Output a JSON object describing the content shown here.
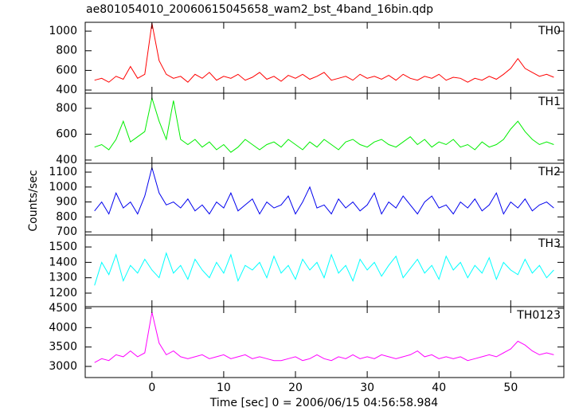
{
  "chart_data": {
    "type": "line",
    "title": "ae801054010_20060615045658_wam2_bst_4band_16bin.qdp",
    "xlabel": "Time [sec] 0 = 2006/06/15 04:56:58.984",
    "ylabel": "Counts/sec",
    "xlim": [
      -9.3,
      57.4
    ],
    "xticks": [
      0,
      10,
      20,
      30,
      40,
      50
    ],
    "x": [
      -8,
      -7,
      -6,
      -5,
      -4,
      -3,
      -2,
      -1,
      0,
      1,
      2,
      3,
      4,
      5,
      6,
      7,
      8,
      9,
      10,
      11,
      12,
      13,
      14,
      15,
      16,
      17,
      18,
      19,
      20,
      21,
      22,
      23,
      24,
      25,
      26,
      27,
      28,
      29,
      30,
      31,
      32,
      33,
      34,
      35,
      36,
      37,
      38,
      39,
      40,
      41,
      42,
      43,
      44,
      45,
      46,
      47,
      48,
      49,
      50,
      51,
      52,
      53,
      54,
      55,
      56
    ],
    "series": [
      {
        "name": "TH0",
        "color": "#ff0000",
        "ylim": [
          368,
          1090
        ],
        "yticks": [
          400,
          600,
          800,
          1000
        ],
        "values": [
          500,
          520,
          480,
          540,
          510,
          640,
          520,
          560,
          1080,
          700,
          560,
          520,
          540,
          480,
          560,
          520,
          580,
          500,
          540,
          520,
          560,
          500,
          530,
          580,
          510,
          540,
          490,
          550,
          520,
          560,
          510,
          540,
          580,
          500,
          520,
          540,
          500,
          560,
          520,
          540,
          510,
          550,
          500,
          560,
          520,
          500,
          540,
          520,
          560,
          500,
          530,
          520,
          480,
          520,
          500,
          540,
          510,
          560,
          620,
          720,
          620,
          580,
          540,
          560,
          530
        ]
      },
      {
        "name": "TH1",
        "color": "#00ee00",
        "ylim": [
          375,
          917
        ],
        "yticks": [
          400,
          600,
          800
        ],
        "values": [
          500,
          520,
          480,
          560,
          700,
          540,
          580,
          620,
          880,
          700,
          560,
          860,
          560,
          520,
          560,
          500,
          540,
          480,
          520,
          460,
          500,
          560,
          520,
          480,
          520,
          540,
          500,
          560,
          520,
          480,
          540,
          500,
          560,
          520,
          480,
          540,
          560,
          520,
          500,
          540,
          560,
          520,
          500,
          540,
          580,
          520,
          560,
          500,
          540,
          520,
          560,
          500,
          520,
          480,
          540,
          500,
          520,
          560,
          640,
          700,
          620,
          560,
          520,
          540,
          520
        ]
      },
      {
        "name": "TH2",
        "color": "#0000ee",
        "ylim": [
          679,
          1159
        ],
        "yticks": [
          700,
          800,
          900,
          1000,
          1100
        ],
        "values": [
          840,
          900,
          820,
          960,
          860,
          900,
          820,
          940,
          1130,
          960,
          880,
          900,
          860,
          920,
          840,
          880,
          820,
          900,
          860,
          960,
          840,
          880,
          920,
          820,
          900,
          860,
          880,
          940,
          820,
          900,
          1000,
          860,
          880,
          820,
          920,
          860,
          900,
          840,
          880,
          960,
          820,
          900,
          860,
          940,
          880,
          820,
          900,
          940,
          860,
          880,
          820,
          900,
          860,
          920,
          840,
          880,
          960,
          820,
          900,
          860,
          920,
          840,
          880,
          900,
          860
        ]
      },
      {
        "name": "TH3",
        "color": "#00ffff",
        "ylim": [
          1112,
          1578
        ],
        "yticks": [
          1200,
          1300,
          1400,
          1500
        ],
        "values": [
          1250,
          1400,
          1320,
          1450,
          1280,
          1380,
          1330,
          1420,
          1350,
          1300,
          1460,
          1330,
          1380,
          1290,
          1420,
          1350,
          1300,
          1400,
          1330,
          1450,
          1280,
          1380,
          1350,
          1400,
          1300,
          1440,
          1330,
          1380,
          1290,
          1420,
          1350,
          1400,
          1300,
          1450,
          1330,
          1380,
          1280,
          1420,
          1350,
          1400,
          1310,
          1380,
          1440,
          1300,
          1360,
          1420,
          1330,
          1380,
          1290,
          1440,
          1350,
          1400,
          1300,
          1380,
          1330,
          1430,
          1290,
          1400,
          1350,
          1320,
          1420,
          1330,
          1380,
          1300,
          1350
        ]
      },
      {
        "name": "TH0123",
        "color": "#ff00ff",
        "ylim": [
          2713,
          4541
        ],
        "yticks": [
          3000,
          3500,
          4000,
          4500
        ],
        "values": [
          3100,
          3200,
          3150,
          3300,
          3250,
          3400,
          3250,
          3350,
          4400,
          3600,
          3300,
          3400,
          3250,
          3200,
          3250,
          3300,
          3200,
          3250,
          3300,
          3200,
          3250,
          3300,
          3200,
          3250,
          3200,
          3150,
          3150,
          3200,
          3250,
          3150,
          3200,
          3300,
          3200,
          3150,
          3250,
          3200,
          3300,
          3200,
          3250,
          3200,
          3300,
          3250,
          3200,
          3250,
          3300,
          3400,
          3250,
          3300,
          3200,
          3250,
          3200,
          3250,
          3150,
          3200,
          3250,
          3300,
          3250,
          3350,
          3450,
          3650,
          3550,
          3400,
          3300,
          3350,
          3300
        ]
      }
    ]
  }
}
